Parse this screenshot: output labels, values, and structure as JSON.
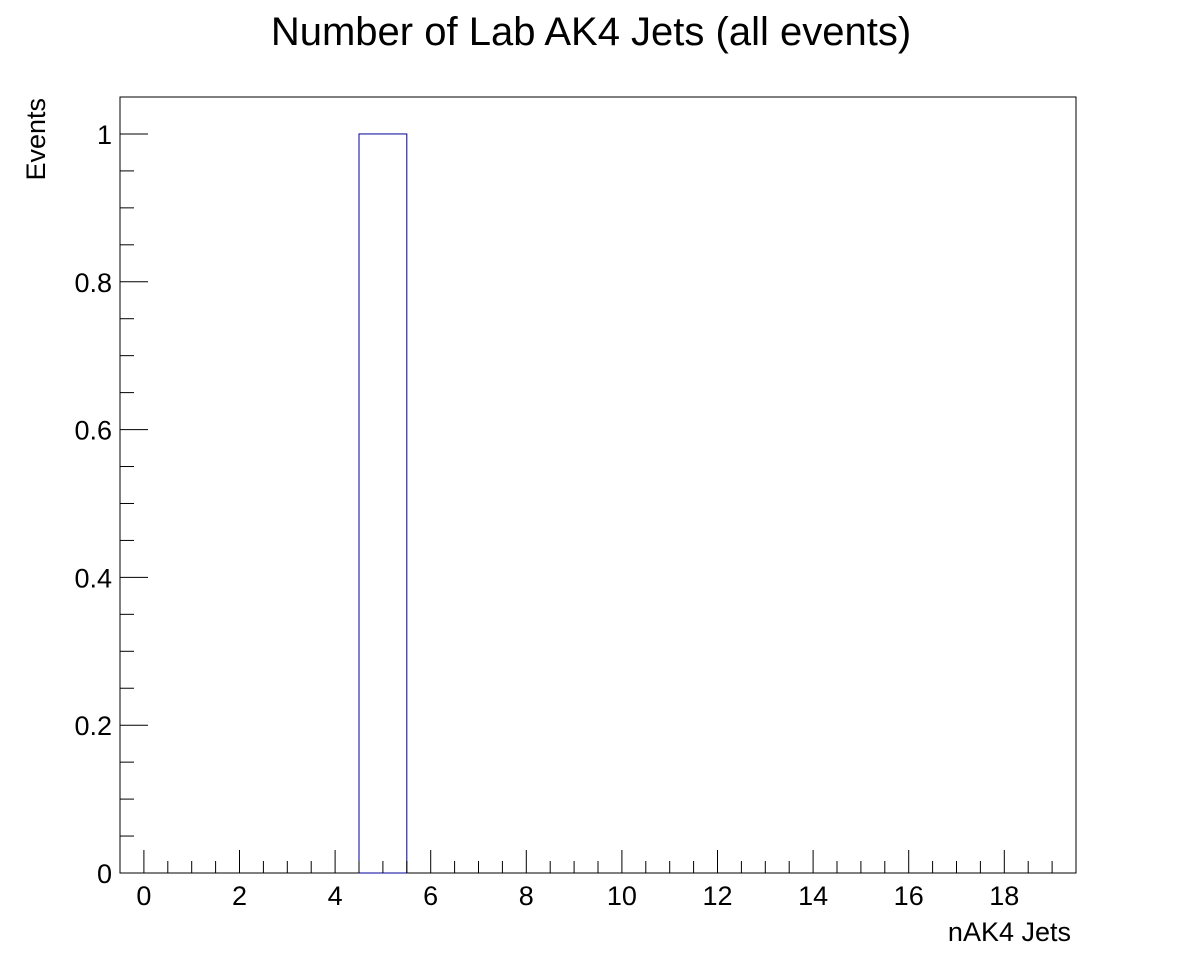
{
  "chart_data": {
    "type": "bar",
    "title": "Number of Lab AK4 Jets (all events)",
    "xlabel": "nAK4 Jets",
    "ylabel": "Events",
    "xlim": [
      -0.5,
      19.5
    ],
    "ylim": [
      0,
      1.05
    ],
    "bins": [
      {
        "low": 4.5,
        "high": 5.5,
        "value": 1
      }
    ],
    "x_ticks": [
      "0",
      "2",
      "4",
      "6",
      "8",
      "10",
      "12",
      "14",
      "16",
      "18"
    ],
    "y_ticks": [
      "0",
      "0.2",
      "0.4",
      "0.6",
      "0.8",
      "1"
    ],
    "grid": false,
    "legend": "none",
    "colors": {
      "bar_stroke": "#000099",
      "frame": "#000000"
    }
  }
}
